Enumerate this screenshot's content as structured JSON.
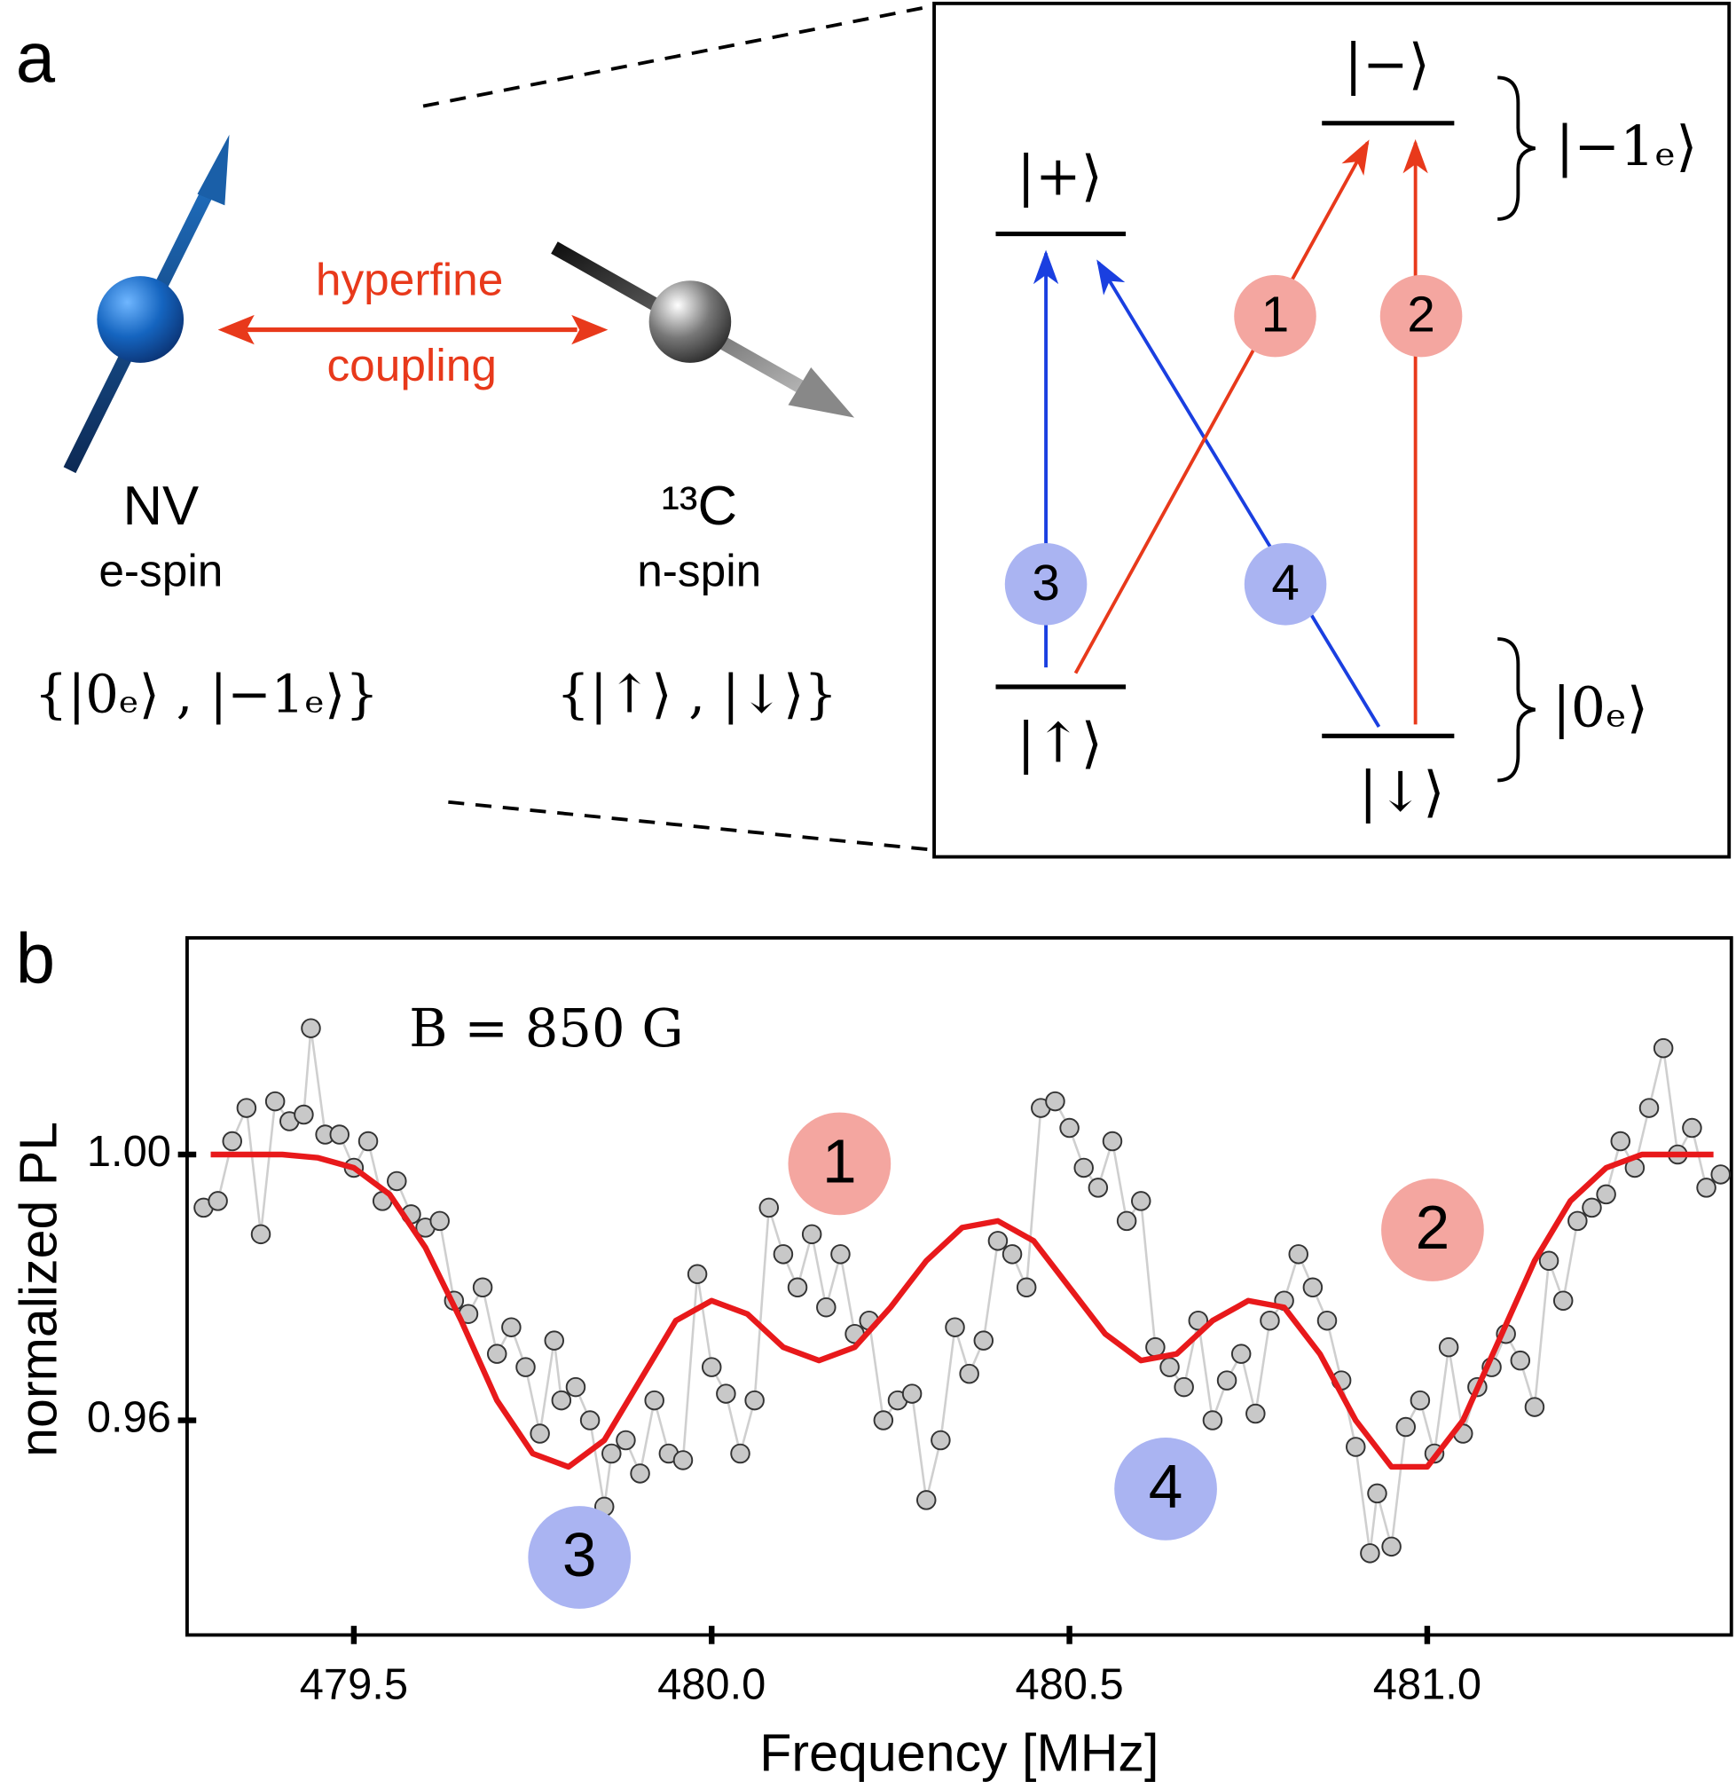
{
  "panel_a": {
    "label": "a",
    "coupling_top": "hyperfine",
    "coupling_bottom": "coupling",
    "nv_name": "NV",
    "nv_spin": "e-spin",
    "nv_basis": "{|0ₑ⟩ , |−1ₑ⟩}",
    "c_name": "¹³C",
    "c_spin": "n-spin",
    "c_basis": "{|↑⟩ , |↓⟩}",
    "levels": [
      "|+⟩",
      "|−⟩",
      "|↑⟩",
      "|↓⟩"
    ],
    "manifolds": [
      "|−1ₑ⟩",
      "|0ₑ⟩"
    ],
    "transitions": [
      "1",
      "2",
      "3",
      "4"
    ]
  },
  "panel_b_label": "b",
  "chart_data": {
    "type": "scatter",
    "xlabel": "Frequency [MHz]",
    "ylabel": "normalized PL",
    "annotations": [
      "B = 850 G",
      "1",
      "2",
      "3",
      "4"
    ],
    "xlim": [
      479.267,
      481.425
    ],
    "ylim": [
      0.9277,
      1.0326
    ],
    "xticks": [
      {
        "value": 479.5,
        "label": "479.5"
      },
      {
        "value": 480,
        "label": "480.0"
      },
      {
        "value": 480.5,
        "label": "480.5"
      },
      {
        "value": 481,
        "label": "481.0"
      }
    ],
    "yticks": [
      {
        "value": 0.96,
        "label": "0.96"
      },
      {
        "value": 1,
        "label": "1.00"
      }
    ],
    "series": [
      {
        "mode": "markers",
        "color": "#c8c8c8",
        "line_color": "#cfcfcf",
        "x": [
          479.29,
          479.31,
          479.33,
          479.35,
          479.37,
          479.39,
          479.41,
          479.43,
          479.44,
          479.46,
          479.48,
          479.5,
          479.52,
          479.54,
          479.56,
          479.58,
          479.6,
          479.62,
          479.64,
          479.66,
          479.68,
          479.7,
          479.72,
          479.74,
          479.76,
          479.78,
          479.79,
          479.81,
          479.83,
          479.85,
          479.86,
          479.88,
          479.9,
          479.92,
          479.94,
          479.96,
          479.98,
          480.0,
          480.02,
          480.04,
          480.06,
          480.08,
          480.1,
          480.12,
          480.14,
          480.16,
          480.18,
          480.2,
          480.22,
          480.24,
          480.26,
          480.28,
          480.3,
          480.32,
          480.34,
          480.36,
          480.38,
          480.4,
          480.42,
          480.44,
          480.46,
          480.48,
          480.5,
          480.52,
          480.54,
          480.56,
          480.58,
          480.6,
          480.62,
          480.64,
          480.66,
          480.68,
          480.7,
          480.72,
          480.74,
          480.76,
          480.78,
          480.8,
          480.82,
          480.84,
          480.86,
          480.88,
          480.9,
          480.92,
          480.93,
          480.95,
          480.97,
          480.99,
          481.01,
          481.03,
          481.05,
          481.07,
          481.09,
          481.11,
          481.13,
          481.15,
          481.17,
          481.19,
          481.21,
          481.23,
          481.25,
          481.27,
          481.29,
          481.31,
          481.33,
          481.35,
          481.37,
          481.39,
          481.41
        ],
        "values": [
          0.992,
          0.993,
          1.002,
          1.007,
          0.988,
          1.008,
          1.005,
          1.006,
          1.019,
          1.003,
          1.003,
          0.998,
          1.002,
          0.993,
          0.996,
          0.991,
          0.989,
          0.99,
          0.978,
          0.976,
          0.98,
          0.97,
          0.974,
          0.968,
          0.958,
          0.972,
          0.963,
          0.965,
          0.96,
          0.947,
          0.955,
          0.957,
          0.952,
          0.963,
          0.955,
          0.954,
          0.982,
          0.968,
          0.964,
          0.955,
          0.963,
          0.992,
          0.985,
          0.98,
          0.988,
          0.977,
          0.985,
          0.973,
          0.975,
          0.96,
          0.963,
          0.964,
          0.948,
          0.957,
          0.974,
          0.967,
          0.972,
          0.987,
          0.985,
          0.98,
          1.007,
          1.008,
          1.004,
          0.998,
          0.995,
          1.002,
          0.99,
          0.993,
          0.971,
          0.968,
          0.965,
          0.975,
          0.96,
          0.966,
          0.97,
          0.961,
          0.975,
          0.978,
          0.985,
          0.98,
          0.975,
          0.966,
          0.956,
          0.94,
          0.949,
          0.941,
          0.959,
          0.963,
          0.955,
          0.971,
          0.958,
          0.965,
          0.968,
          0.973,
          0.969,
          0.962,
          0.984,
          0.978,
          0.99,
          0.992,
          0.994,
          1.002,
          0.998,
          1.007,
          1.016,
          1.0,
          1.004,
          0.995,
          0.997
        ]
      },
      {
        "mode": "line",
        "color": "#e8191b",
        "x": [
          479.3,
          479.35,
          479.4,
          479.45,
          479.5,
          479.55,
          479.6,
          479.65,
          479.7,
          479.75,
          479.8,
          479.85,
          479.9,
          479.95,
          480.0,
          480.05,
          480.1,
          480.15,
          480.2,
          480.25,
          480.3,
          480.35,
          480.4,
          480.45,
          480.5,
          480.55,
          480.6,
          480.65,
          480.7,
          480.75,
          480.8,
          480.85,
          480.9,
          480.95,
          481.0,
          481.05,
          481.1,
          481.15,
          481.2,
          481.25,
          481.3,
          481.35,
          481.4
        ],
        "values": [
          1.0,
          1.0,
          1.0,
          0.9995,
          0.998,
          0.994,
          0.986,
          0.975,
          0.963,
          0.955,
          0.953,
          0.957,
          0.966,
          0.975,
          0.978,
          0.976,
          0.971,
          0.969,
          0.971,
          0.977,
          0.984,
          0.989,
          0.99,
          0.987,
          0.98,
          0.973,
          0.969,
          0.97,
          0.975,
          0.978,
          0.977,
          0.97,
          0.96,
          0.953,
          0.953,
          0.96,
          0.972,
          0.984,
          0.993,
          0.998,
          1.0,
          1.0,
          1.0
        ]
      }
    ],
    "annotation_colors": {
      "red": "#f4a6a0",
      "blue": "#aab4f2"
    }
  }
}
